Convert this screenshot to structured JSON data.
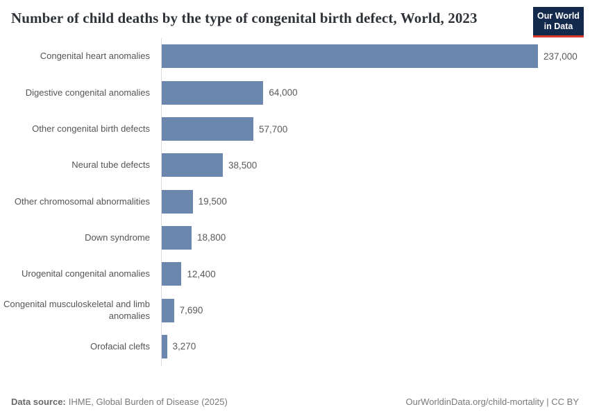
{
  "header": {
    "title": "Number of child deaths by the type of congenital birth defect, World, 2023",
    "logo": {
      "line1": "Our World",
      "line2": "in Data"
    }
  },
  "chart_data": {
    "type": "bar",
    "orientation": "horizontal",
    "title": "Number of child deaths by the type of congenital birth defect, World, 2023",
    "categories": [
      "Congenital heart anomalies",
      "Digestive congenital anomalies",
      "Other congenital birth defects",
      "Neural tube defects",
      "Other chromosomal abnormalities",
      "Down syndrome",
      "Urogenital congenital anomalies",
      "Congenital musculoskeletal and limb anomalies",
      "Orofacial clefts"
    ],
    "values": [
      237000,
      64000,
      57700,
      38500,
      19500,
      18800,
      12400,
      7690,
      3270
    ],
    "value_labels": [
      "237,000",
      "64,000",
      "57,700",
      "38,500",
      "19,500",
      "18,800",
      "12,400",
      "7,690",
      "3,270"
    ],
    "xlim": [
      0,
      237000
    ],
    "grid": false,
    "legend": "none",
    "bar_color": "#6c87ad"
  },
  "footer": {
    "source_label": "Data source:",
    "source_text": "IHME, Global Burden of Disease (2025)",
    "attribution": "OurWorldinData.org/child-mortality | CC BY"
  },
  "colors": {
    "bar": "#6c87ad",
    "axis_line": "#dcdcdc",
    "logo_bg": "#142a4d",
    "logo_accent": "#e0372c"
  }
}
